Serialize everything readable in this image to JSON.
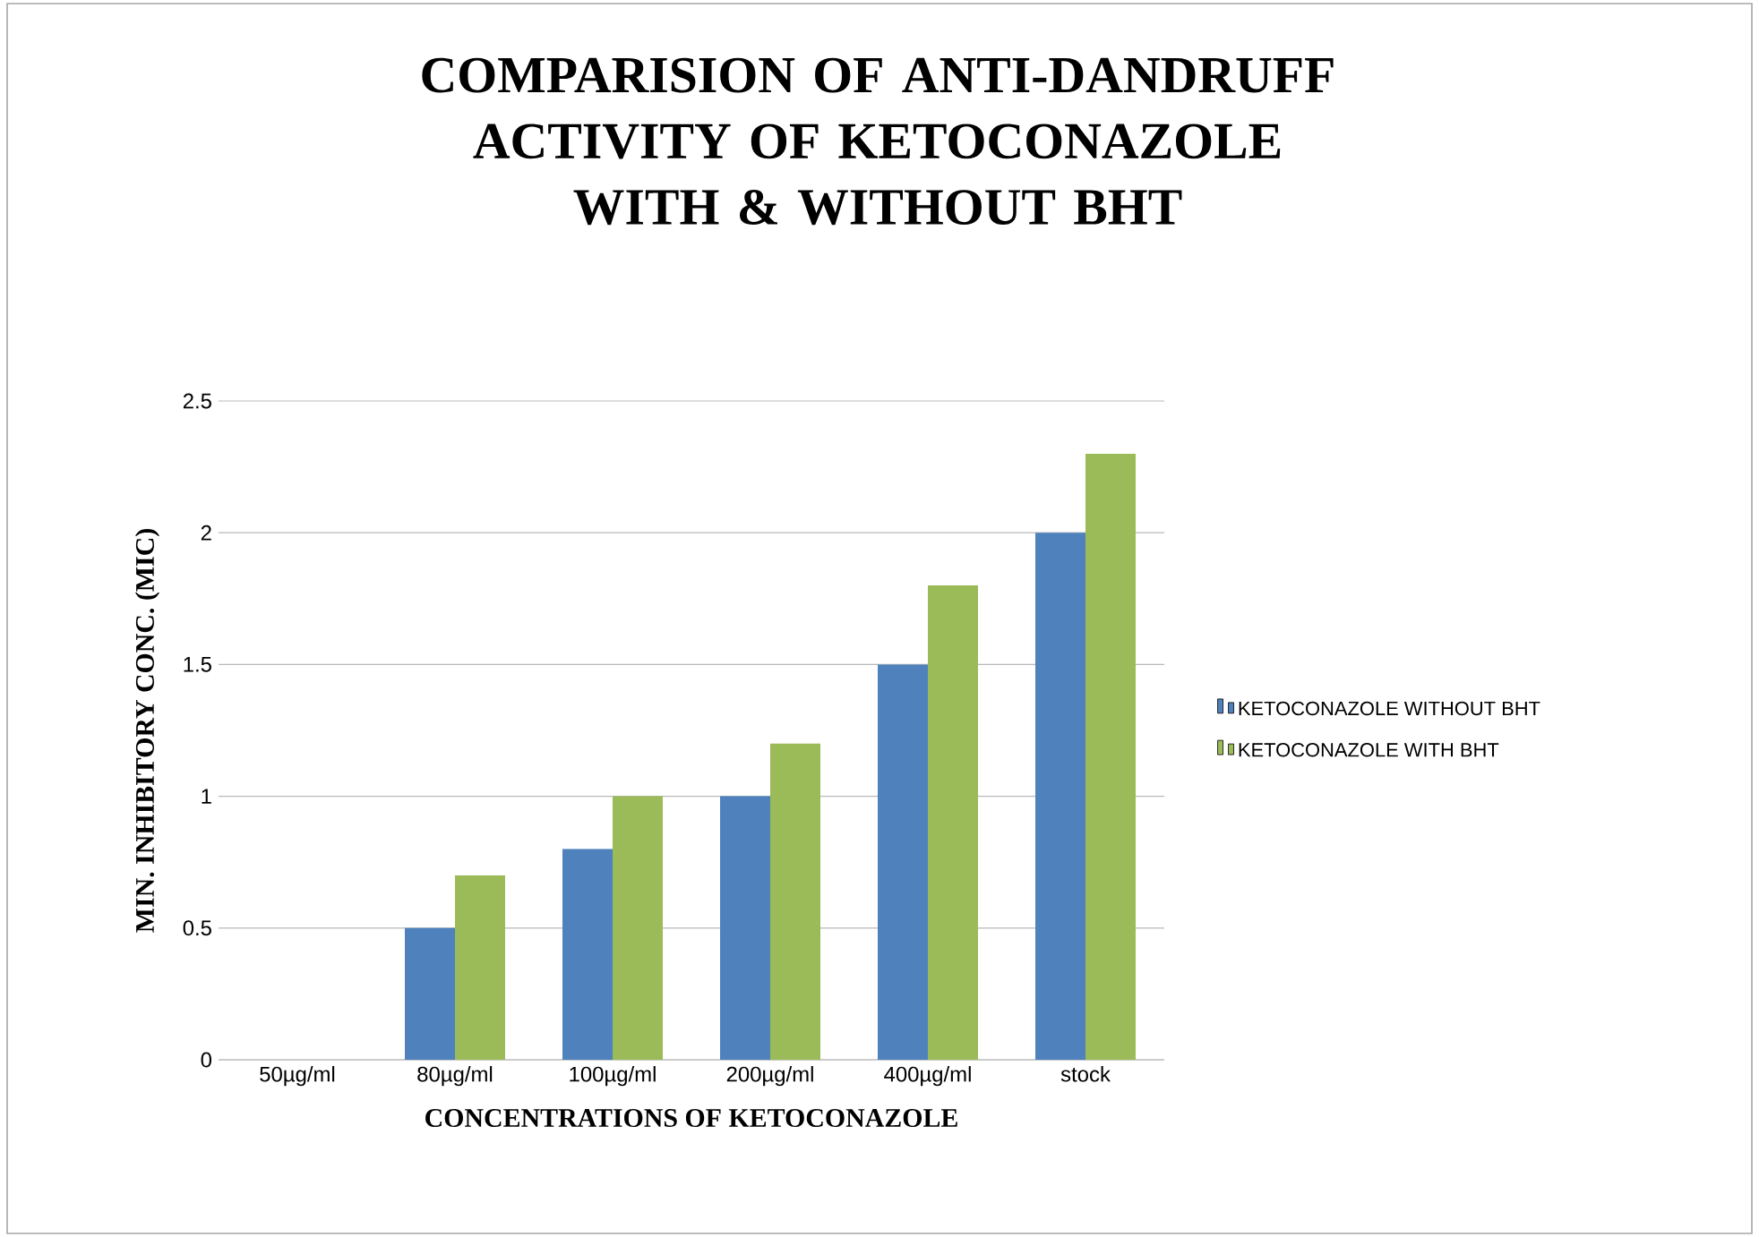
{
  "chart_data": {
    "type": "bar",
    "title": "COMPARISION OF ANTI-DANDRUFF ACTIVITY OF KETOCONAZOLE WITH & WITHOUT BHT",
    "xlabel": "CONCENTRATIONS OF KETOCONAZOLE",
    "ylabel": "MIN. INHIBITORY CONC. (MIC)",
    "categories": [
      "50µg/ml",
      "80µg/ml",
      "100µg/ml",
      "200µg/ml",
      "400µg/ml",
      "stock"
    ],
    "series": [
      {
        "name": "KETOCONAZOLE WITHOUT BHT",
        "color": "#4f81bd",
        "values": [
          0,
          0.5,
          0.8,
          1,
          1.5,
          2
        ]
      },
      {
        "name": "KETOCONAZOLE WITH BHT",
        "color": "#9bbb59",
        "values": [
          0,
          0.7,
          1,
          1.2,
          1.8,
          2.3
        ]
      }
    ],
    "ylim": [
      0,
      2.5
    ],
    "yticks": [
      0,
      0.5,
      1,
      1.5,
      2,
      2.5
    ],
    "grid": "y",
    "legend": "right"
  }
}
